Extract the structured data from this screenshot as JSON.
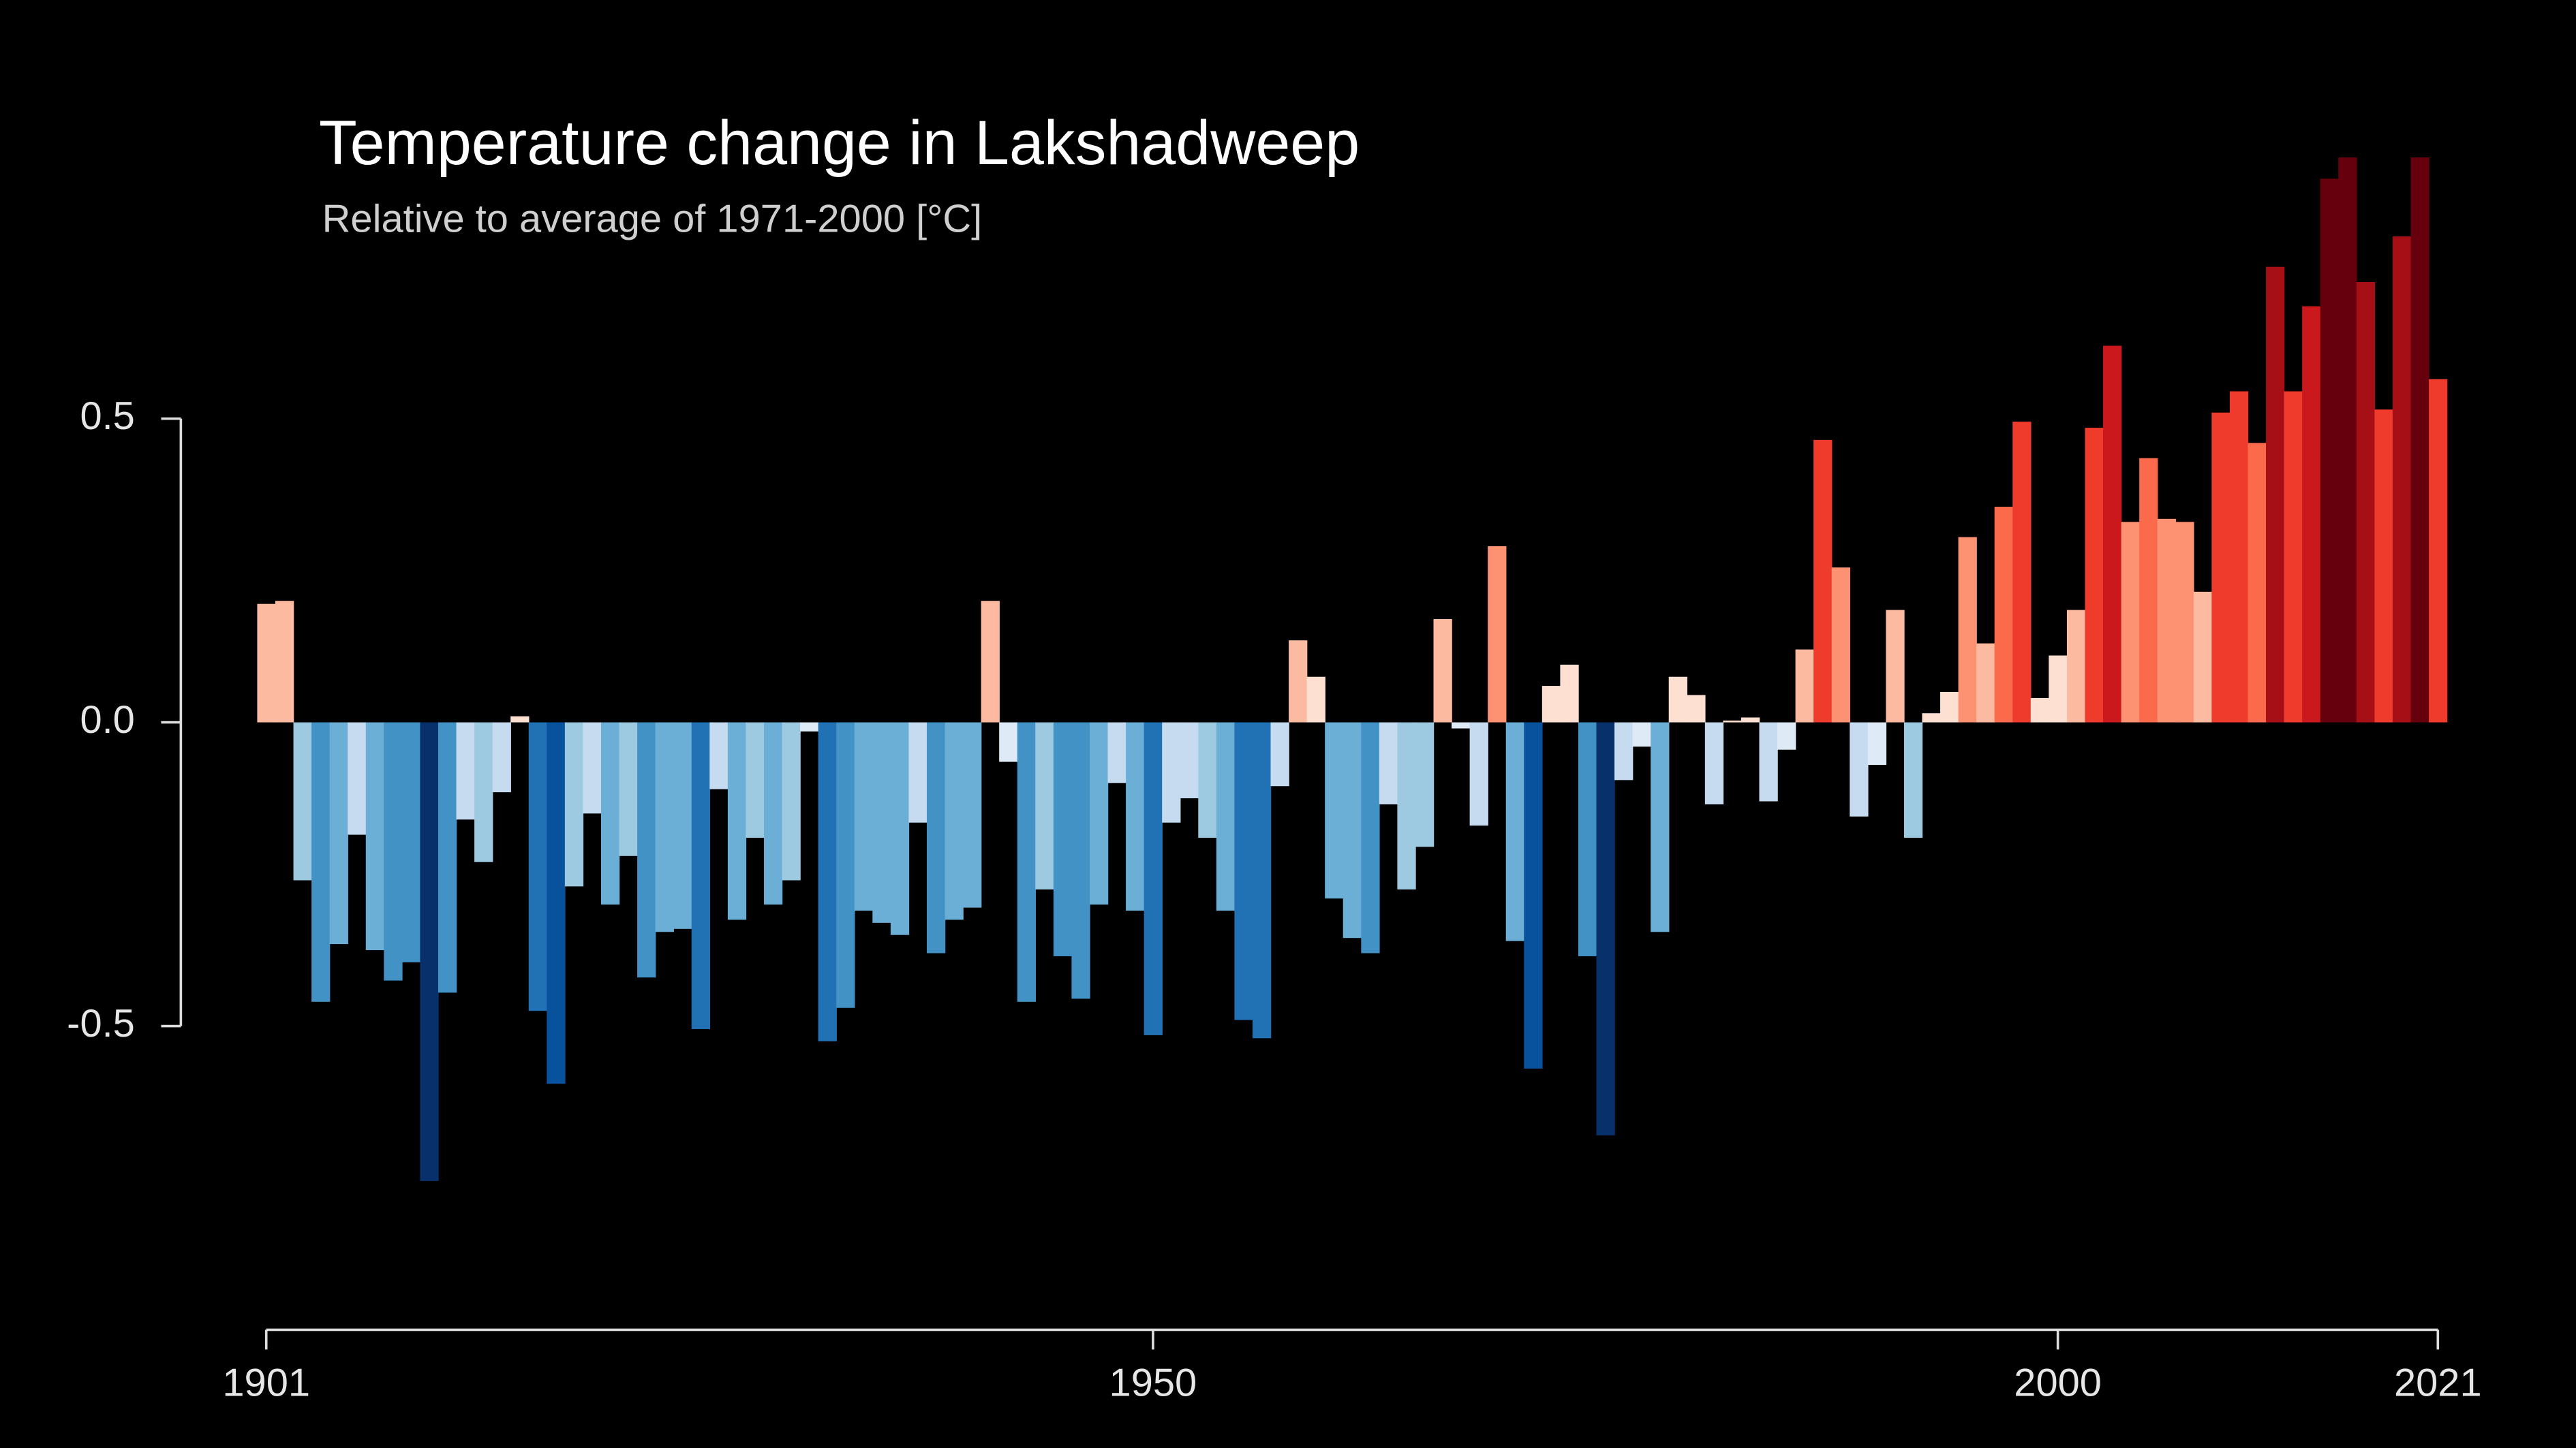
{
  "chart_data": {
    "type": "bar",
    "title": "Temperature change in Lakshadweep",
    "subtitle": "Relative to average of 1971-2000  [°C]",
    "x": [
      1901,
      1902,
      1903,
      1904,
      1905,
      1906,
      1907,
      1908,
      1909,
      1910,
      1911,
      1912,
      1913,
      1914,
      1915,
      1916,
      1917,
      1918,
      1919,
      1920,
      1921,
      1922,
      1923,
      1924,
      1925,
      1926,
      1927,
      1928,
      1929,
      1930,
      1931,
      1932,
      1933,
      1934,
      1935,
      1936,
      1937,
      1938,
      1939,
      1940,
      1941,
      1942,
      1943,
      1944,
      1945,
      1946,
      1947,
      1948,
      1949,
      1950,
      1951,
      1952,
      1953,
      1954,
      1955,
      1956,
      1957,
      1958,
      1959,
      1960,
      1961,
      1962,
      1963,
      1964,
      1965,
      1966,
      1967,
      1968,
      1969,
      1970,
      1971,
      1972,
      1973,
      1974,
      1975,
      1976,
      1977,
      1978,
      1979,
      1980,
      1981,
      1982,
      1983,
      1984,
      1985,
      1986,
      1987,
      1988,
      1989,
      1990,
      1991,
      1992,
      1993,
      1994,
      1995,
      1996,
      1997,
      1998,
      1999,
      2000,
      2001,
      2002,
      2003,
      2004,
      2005,
      2006,
      2007,
      2008,
      2009,
      2010,
      2011,
      2012,
      2013,
      2014,
      2015,
      2016,
      2017,
      2018,
      2019,
      2020,
      2021
    ],
    "values": [
      0.195,
      0.2,
      -0.26,
      -0.46,
      -0.365,
      -0.185,
      -0.375,
      -0.425,
      -0.395,
      -0.755,
      -0.445,
      -0.16,
      -0.23,
      -0.115,
      0.01,
      -0.475,
      -0.595,
      -0.27,
      -0.15,
      -0.3,
      -0.22,
      -0.42,
      -0.345,
      -0.34,
      -0.505,
      -0.11,
      -0.325,
      -0.19,
      -0.3,
      -0.26,
      -0.015,
      -0.525,
      -0.47,
      -0.31,
      -0.33,
      -0.35,
      -0.165,
      -0.38,
      -0.325,
      -0.305,
      0.2,
      -0.065,
      -0.46,
      -0.275,
      -0.385,
      -0.455,
      -0.3,
      -0.1,
      -0.31,
      -0.515,
      -0.165,
      -0.125,
      -0.19,
      -0.31,
      -0.49,
      -0.52,
      -0.105,
      0.135,
      0.075,
      -0.29,
      -0.355,
      -0.38,
      -0.135,
      -0.275,
      -0.205,
      0.17,
      -0.01,
      -0.17,
      0.29,
      -0.36,
      -0.57,
      0.06,
      0.095,
      -0.385,
      -0.68,
      -0.095,
      -0.04,
      -0.345,
      0.075,
      0.045,
      -0.135,
      0.003,
      0.008,
      -0.13,
      -0.045,
      0.12,
      0.465,
      0.255,
      -0.155,
      -0.07,
      0.185,
      -0.19,
      0.015,
      0.05,
      0.305,
      0.13,
      0.355,
      0.495,
      0.04,
      0.11,
      0.185,
      0.485,
      0.62,
      0.33,
      0.435,
      0.335,
      0.33,
      0.215,
      0.51,
      0.545,
      0.46,
      0.75,
      0.545,
      0.685,
      0.895,
      0.93,
      0.725,
      0.515,
      0.8,
      0.93,
      0.565
    ],
    "xlim": [
      1901,
      2021
    ],
    "xticks": [
      1901,
      1950,
      2000,
      2021
    ],
    "ylim": [
      -1.0,
      1.0
    ],
    "yticks": [
      0.5,
      {
        "value": 0,
        "label": "0.0"
      },
      -0.5
    ],
    "cold_colors": [
      "#08306b",
      "#08519c",
      "#2171b5",
      "#4292c6",
      "#6baed6",
      "#9ecae1",
      "#c6dbef",
      "#deebf7"
    ],
    "warm_colors": [
      "#fee0d2",
      "#fcbba1",
      "#fc9272",
      "#fb6a4a",
      "#ef3b2c",
      "#cb181d",
      "#a50f15",
      "#67000d"
    ]
  }
}
